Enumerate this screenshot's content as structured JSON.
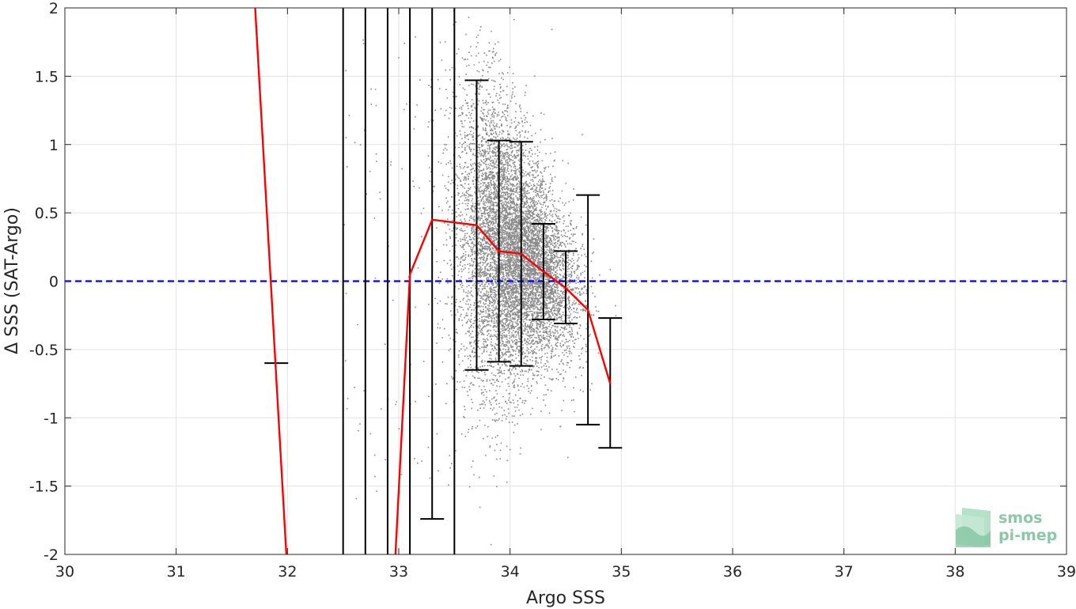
{
  "chart_data": {
    "type": "scatter",
    "xlabel": "Argo SSS",
    "ylabel": "Δ SSS (SAT-Argo)",
    "xlim": [
      30,
      39
    ],
    "ylim": [
      -2,
      2
    ],
    "xticks": [
      30,
      31,
      32,
      33,
      34,
      35,
      36,
      37,
      38,
      39
    ],
    "yticks": [
      2,
      1.5,
      1,
      0.5,
      0,
      -0.5,
      -1,
      -1.5,
      -2
    ],
    "ytick_labels": [
      "2",
      "1.5",
      "1",
      "0.5",
      "0",
      "-0.5",
      "-1",
      "-1.5",
      "-2"
    ],
    "grid": true,
    "reference_line": {
      "y": 0,
      "style": "dashed",
      "color": "#0000ee"
    },
    "scatter_cloud": {
      "color": "#8a8a8a",
      "note_center_x": 33.95,
      "core_x_range": [
        33.6,
        34.7
      ],
      "core_y_range": [
        -2,
        2
      ]
    },
    "mean_line": {
      "color": "#ff0000",
      "points": [
        {
          "x": 31.71,
          "y": 2.0
        },
        {
          "x": 31.99,
          "y": -2.0
        },
        {
          "x": 32.97,
          "y": -2.0
        },
        {
          "x": 33.1,
          "y": 0.05
        },
        {
          "x": 33.3,
          "y": 0.45
        },
        {
          "x": 33.7,
          "y": 0.41
        },
        {
          "x": 33.9,
          "y": 0.22
        },
        {
          "x": 34.1,
          "y": 0.2
        },
        {
          "x": 34.3,
          "y": 0.07
        },
        {
          "x": 34.5,
          "y": -0.05
        },
        {
          "x": 34.7,
          "y": -0.21
        },
        {
          "x": 34.9,
          "y": -0.75
        }
      ],
      "break_after_index": 1
    },
    "error_bars": [
      {
        "x": 31.9,
        "low": -0.6,
        "high": -0.6,
        "cap_low": true,
        "cap_high": false
      },
      {
        "x": 32.5,
        "low": -2.0,
        "high": 2.0,
        "cap_low": false,
        "cap_high": false
      },
      {
        "x": 32.7,
        "low": -2.0,
        "high": 2.0,
        "cap_low": false,
        "cap_high": false
      },
      {
        "x": 32.9,
        "low": -2.0,
        "high": 2.0,
        "cap_low": false,
        "cap_high": false
      },
      {
        "x": 33.1,
        "low": -2.0,
        "high": 2.0,
        "cap_low": false,
        "cap_high": false
      },
      {
        "x": 33.3,
        "low": -1.74,
        "high": 2.0,
        "cap_low": true,
        "cap_high": false
      },
      {
        "x": 33.5,
        "low": -2.0,
        "high": 2.0,
        "cap_low": false,
        "cap_high": false
      },
      {
        "x": 33.7,
        "low": -0.65,
        "high": 1.47,
        "cap_low": true,
        "cap_high": true
      },
      {
        "x": 33.9,
        "low": -0.59,
        "high": 1.03,
        "cap_low": true,
        "cap_high": true
      },
      {
        "x": 34.1,
        "low": -0.62,
        "high": 1.02,
        "cap_low": true,
        "cap_high": true
      },
      {
        "x": 34.3,
        "low": -0.28,
        "high": 0.42,
        "cap_low": true,
        "cap_high": true
      },
      {
        "x": 34.5,
        "low": -0.31,
        "high": 0.22,
        "cap_low": true,
        "cap_high": true
      },
      {
        "x": 34.7,
        "low": -1.05,
        "high": 0.63,
        "cap_low": true,
        "cap_high": true
      },
      {
        "x": 34.9,
        "low": -1.22,
        "high": -0.27,
        "cap_low": true,
        "cap_high": true
      }
    ]
  },
  "logo": {
    "line1": "smos",
    "line2": "pi-mep",
    "color": "#8cc8a8"
  }
}
